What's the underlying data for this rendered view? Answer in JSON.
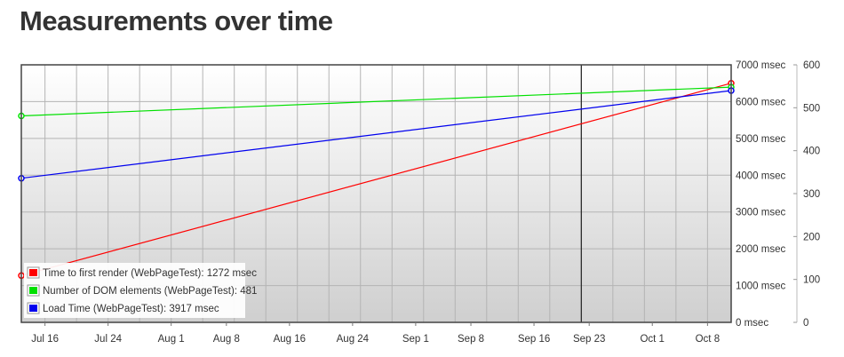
{
  "page": {
    "title": "Measurements over time"
  },
  "chart_data": {
    "type": "line",
    "x_domain": [
      "2012-07-13",
      "2012-10-11"
    ],
    "x_ticks": [
      {
        "date": "2012-07-16",
        "label": "Jul 16"
      },
      {
        "date": "2012-07-24",
        "label": "Jul 24"
      },
      {
        "date": "2012-08-01",
        "label": "Aug 1"
      },
      {
        "date": "2012-08-08",
        "label": "Aug 8"
      },
      {
        "date": "2012-08-16",
        "label": "Aug 16"
      },
      {
        "date": "2012-08-24",
        "label": "Aug 24"
      },
      {
        "date": "2012-09-01",
        "label": "Sep 1"
      },
      {
        "date": "2012-09-08",
        "label": "Sep 8"
      },
      {
        "date": "2012-09-16",
        "label": "Sep 16"
      },
      {
        "date": "2012-09-23",
        "label": "Sep 23"
      },
      {
        "date": "2012-10-01",
        "label": "Oct 1"
      },
      {
        "date": "2012-10-08",
        "label": "Oct 8"
      }
    ],
    "y_left": {
      "ylim": [
        0,
        7000
      ],
      "ticks": [
        0,
        1000,
        2000,
        3000,
        4000,
        5000,
        6000,
        7000
      ],
      "tick_labels": [
        "0 msec",
        "1000 msec",
        "2000 msec",
        "3000 msec",
        "4000 msec",
        "5000 msec",
        "6000 msec",
        "7000 msec"
      ]
    },
    "y_right": {
      "ylim": [
        0,
        600
      ],
      "ticks": [
        0,
        100,
        200,
        300,
        400,
        500,
        600
      ],
      "tick_labels": [
        "0",
        "100",
        "200",
        "300",
        "400",
        "500",
        "600"
      ]
    },
    "marker_line_date": "2012-09-22",
    "grid": true,
    "legend_position": "bottom-left",
    "series": [
      {
        "name": "Time to first render (WebPageTest)",
        "legend_value": "1272 msec",
        "color": "#ff0000",
        "axis": "left",
        "points": [
          {
            "x": "2012-07-13",
            "y": 1272
          },
          {
            "x": "2012-10-11",
            "y": 6500
          }
        ]
      },
      {
        "name": "Number of DOM elements (WebPageTest)",
        "legend_value": "481",
        "color": "#00e000",
        "axis": "right",
        "points": [
          {
            "x": "2012-07-13",
            "y": 481
          },
          {
            "x": "2012-10-11",
            "y": 548
          }
        ]
      },
      {
        "name": "Load Time (WebPageTest)",
        "legend_value": "3917 msec",
        "color": "#0000ee",
        "axis": "left",
        "points": [
          {
            "x": "2012-07-13",
            "y": 3917
          },
          {
            "x": "2012-10-11",
            "y": 6300
          }
        ]
      }
    ]
  }
}
